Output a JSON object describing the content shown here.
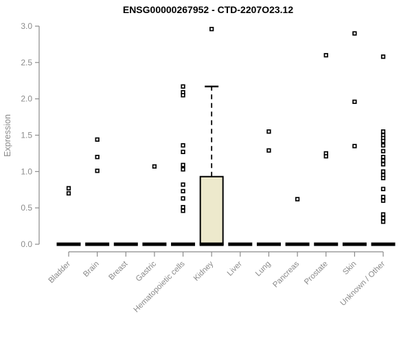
{
  "page": {
    "background": "#ffffff"
  },
  "chart_data": {
    "type": "boxplot",
    "title": "ENSG00000267952 - CTD-2207O23.12",
    "xlabel": "",
    "ylabel": "Expression",
    "ylim": [
      0,
      3.0
    ],
    "ytick_labels": [
      "0.0",
      "0.5",
      "1.0",
      "1.5",
      "2.0",
      "2.5",
      "3.0"
    ],
    "grid": false,
    "legend": null,
    "categories": [
      "Bladder",
      "Brain",
      "Breast",
      "Gastric",
      "Hematopoietic cells",
      "Kidney",
      "Liver",
      "Lung",
      "Pancreas",
      "Prostate",
      "Skin",
      "Unknown / Other"
    ],
    "series": [
      {
        "label": "Bladder",
        "q1": 0,
        "median": 0,
        "q3": 0,
        "whisker_low": 0,
        "whisker_high": 0,
        "points": [
          0.77,
          0.7
        ]
      },
      {
        "label": "Brain",
        "q1": 0,
        "median": 0,
        "q3": 0,
        "whisker_low": 0,
        "whisker_high": 0,
        "points": [
          1.44,
          1.2,
          1.01
        ]
      },
      {
        "label": "Breast",
        "q1": 0,
        "median": 0,
        "q3": 0,
        "whisker_low": 0,
        "whisker_high": 0,
        "points": []
      },
      {
        "label": "Gastric",
        "q1": 0,
        "median": 0,
        "q3": 0,
        "whisker_low": 0,
        "whisker_high": 0,
        "points": [
          1.07
        ]
      },
      {
        "label": "Hematopoietic cells",
        "q1": 0,
        "median": 0,
        "q3": 0,
        "whisker_low": 0,
        "whisker_high": 0,
        "points": [
          2.17,
          2.09,
          2.05,
          1.36,
          1.27,
          1.09,
          1.03,
          0.82,
          0.73,
          0.63,
          0.51,
          0.46
        ]
      },
      {
        "label": "Kidney",
        "q1": 0,
        "median": 0,
        "q3": 0.93,
        "whisker_low": 0,
        "whisker_high": 2.17,
        "points": [
          2.96
        ]
      },
      {
        "label": "Liver",
        "q1": 0,
        "median": 0,
        "q3": 0,
        "whisker_low": 0,
        "whisker_high": 0,
        "points": []
      },
      {
        "label": "Lung",
        "q1": 0,
        "median": 0,
        "q3": 0,
        "whisker_low": 0,
        "whisker_high": 0,
        "points": [
          1.55,
          1.29
        ]
      },
      {
        "label": "Pancreas",
        "q1": 0,
        "median": 0,
        "q3": 0,
        "whisker_low": 0,
        "whisker_high": 0,
        "points": [
          0.62
        ]
      },
      {
        "label": "Prostate",
        "q1": 0,
        "median": 0,
        "q3": 0,
        "whisker_low": 0,
        "whisker_high": 0,
        "points": [
          2.6,
          1.25,
          1.21
        ]
      },
      {
        "label": "Skin",
        "q1": 0,
        "median": 0,
        "q3": 0,
        "whisker_low": 0,
        "whisker_high": 0,
        "points": [
          2.9,
          1.96,
          1.35
        ]
      },
      {
        "label": "Unknown / Other",
        "q1": 0,
        "median": 0,
        "q3": 0,
        "whisker_low": 0,
        "whisker_high": 0,
        "points": [
          2.58,
          1.55,
          1.5,
          1.46,
          1.42,
          1.36,
          1.28,
          1.2,
          1.15,
          1.1,
          1.0,
          0.95,
          0.91,
          0.76,
          0.65,
          0.6,
          0.41,
          0.36,
          0.31
        ]
      }
    ],
    "colors": {
      "box_fill": "#EDE9CC",
      "box_edge": "#000000",
      "point": "#000000",
      "axis": "#8a8a8a",
      "title": "#000000",
      "background": "#ffffff"
    }
  }
}
